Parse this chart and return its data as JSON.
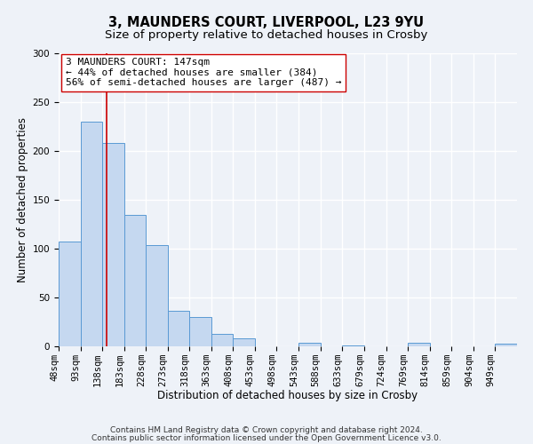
{
  "title_line1": "3, MAUNDERS COURT, LIVERPOOL, L23 9YU",
  "title_line2": "Size of property relative to detached houses in Crosby",
  "xlabel": "Distribution of detached houses by size in Crosby",
  "ylabel": "Number of detached properties",
  "bin_edges": [
    48,
    93,
    138,
    183,
    228,
    273,
    318,
    363,
    408,
    453,
    498,
    543,
    588,
    633,
    679,
    724,
    769,
    814,
    859,
    904,
    949
  ],
  "bar_heights": [
    107,
    230,
    208,
    135,
    104,
    36,
    30,
    13,
    8,
    0,
    0,
    4,
    0,
    1,
    0,
    0,
    4,
    0,
    0,
    0,
    3
  ],
  "bar_color": "#c5d8f0",
  "bar_edge_color": "#5a9ad4",
  "vline_x": 147,
  "vline_color": "#cc0000",
  "annotation_line1": "3 MAUNDERS COURT: 147sqm",
  "annotation_line2": "← 44% of detached houses are smaller (384)",
  "annotation_line3": "56% of semi-detached houses are larger (487) →",
  "ylim": [
    0,
    300
  ],
  "yticks": [
    0,
    50,
    100,
    150,
    200,
    250,
    300
  ],
  "footer_line1": "Contains HM Land Registry data © Crown copyright and database right 2024.",
  "footer_line2": "Contains public sector information licensed under the Open Government Licence v3.0.",
  "bg_color": "#eef2f8",
  "grid_color": "#ffffff",
  "title1_fontsize": 10.5,
  "title2_fontsize": 9.5,
  "axis_label_fontsize": 8.5,
  "tick_fontsize": 7.5,
  "annotation_fontsize": 8,
  "footer_fontsize": 6.5
}
